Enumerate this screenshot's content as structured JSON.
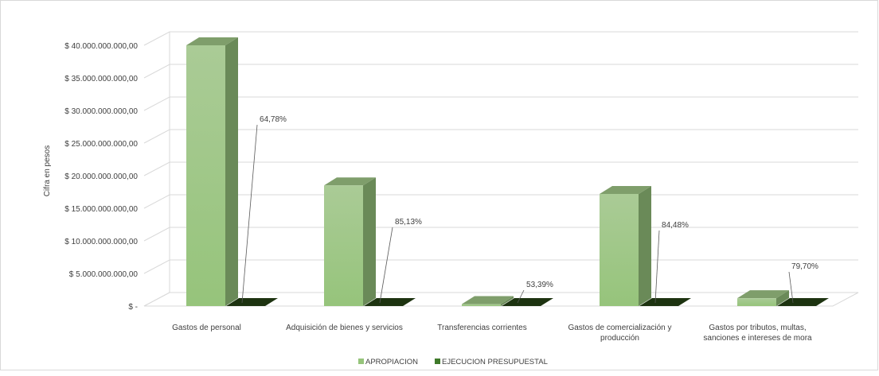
{
  "chart_data": {
    "type": "bar",
    "ylabel": "Cifra en pesos",
    "ylim": [
      0,
      40000000000
    ],
    "ytick_values": [
      0,
      5000000000,
      10000000000,
      15000000000,
      20000000000,
      25000000000,
      30000000000,
      35000000000,
      40000000000
    ],
    "ytick_labels": [
      "$ -",
      "$ 5.000.000.000,00",
      "$ 10.000.000.000,00",
      "$ 15.000.000.000,00",
      "$ 20.000.000.000,00",
      "$ 25.000.000.000,00",
      "$ 30.000.000.000,00",
      "$ 35.000.000.000,00",
      "$ 40.000.000.000,00"
    ],
    "categories": [
      [
        "Gastos de personal"
      ],
      [
        "Adquisición de bienes y servicios"
      ],
      [
        "Transferencias corrientes"
      ],
      [
        "Gastos de comercialización y",
        "producción"
      ],
      [
        "Gastos por tributos, multas,",
        "sanciones e intereses de mora"
      ]
    ],
    "series": [
      {
        "name": "APROPIACION",
        "values": [
          40000000000,
          18500000000,
          300000000,
          17200000000,
          1200000000
        ]
      },
      {
        "name": "EJECUCION PRESUPUESTAL",
        "values": [
          0,
          0,
          0,
          0,
          0
        ]
      }
    ],
    "data_labels": [
      "64,78%",
      "85,13%",
      "53,39%",
      "84,48%",
      "79,70%"
    ],
    "legend_position": "bottom",
    "grid": true,
    "colors": {
      "apropiacion_front_top": "#aacb96",
      "apropiacion_front_bottom": "#96c47b",
      "apropiacion_side": "#6a8a58",
      "apropiacion_top": "#7f9e6b",
      "ejecucion_front": "#1d3310",
      "ejecucion_legend": "#3f7a2a",
      "legend_apropiacion": "#96c47b",
      "grid": "#d9d9d9",
      "text": "#404040"
    }
  }
}
